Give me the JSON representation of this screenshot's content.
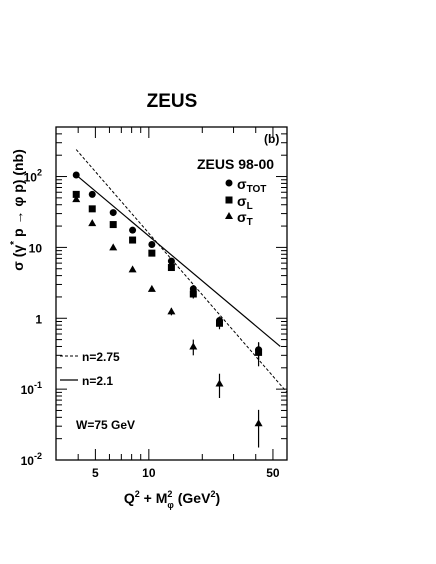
{
  "chart_data": {
    "type": "scatter",
    "title": "ZEUS",
    "panel_label": "(b)",
    "legend_title": "ZEUS 98-00",
    "xlabel": {
      "main": "Q",
      "sup1": "2",
      "mid": " + M",
      "sup2": "2",
      "sub": "φ",
      "unit": " (GeV",
      "unit_sup": "2",
      "close": ")"
    },
    "ylabel": {
      "pre": "σ (γ",
      "sup": "*",
      "post": " p → φ p) (nb)"
    },
    "x_scale": "log",
    "y_scale": "log",
    "xlim": [
      3,
      60
    ],
    "ylim": [
      0.01,
      500
    ],
    "x_ticks": [
      {
        "v": 5,
        "label": "5"
      },
      {
        "v": 10,
        "label": "10"
      },
      {
        "v": 50,
        "label": "50"
      }
    ],
    "y_ticks": [
      {
        "v": 0.01,
        "base": "10",
        "exp": "-2"
      },
      {
        "v": 0.1,
        "base": "10",
        "exp": "-1"
      },
      {
        "v": 1,
        "base": "1",
        "exp": ""
      },
      {
        "v": 10,
        "base": "10",
        "exp": ""
      },
      {
        "v": 100,
        "base": "10",
        "exp": "2"
      }
    ],
    "series": [
      {
        "name": "σ",
        "sub": "TOT",
        "marker": "circle",
        "points": [
          [
            3.9,
            105,
            0
          ],
          [
            4.8,
            56,
            0
          ],
          [
            6.3,
            31,
            0
          ],
          [
            8.1,
            17.5,
            0
          ],
          [
            10.4,
            11,
            0
          ],
          [
            13.4,
            6.4,
            0
          ],
          [
            17.8,
            2.6,
            0.35
          ],
          [
            25,
            0.93,
            0.13
          ],
          [
            41.5,
            0.36,
            0.1
          ]
        ]
      },
      {
        "name": "σ",
        "sub": "L",
        "marker": "square",
        "points": [
          [
            3.9,
            56,
            0
          ],
          [
            4.8,
            35,
            0
          ],
          [
            6.3,
            21,
            0
          ],
          [
            8.1,
            12.7,
            0
          ],
          [
            10.4,
            8.3,
            0
          ],
          [
            13.4,
            5.2,
            0
          ],
          [
            17.8,
            2.2,
            0.3
          ],
          [
            25,
            0.85,
            0.15
          ],
          [
            41.5,
            0.33,
            0.12
          ]
        ]
      },
      {
        "name": "σ",
        "sub": "T",
        "marker": "triangle",
        "points": [
          [
            3.9,
            48,
            0
          ],
          [
            4.8,
            22,
            0
          ],
          [
            6.3,
            10,
            0
          ],
          [
            8.1,
            4.9,
            0
          ],
          [
            10.4,
            2.6,
            0
          ],
          [
            13.4,
            1.25,
            0.15
          ],
          [
            17.8,
            0.4,
            0.1
          ],
          [
            25,
            0.12,
            0.045
          ],
          [
            41.5,
            0.033,
            0.018
          ]
        ]
      }
    ],
    "lines": [
      {
        "name": "n=2.75",
        "style": "dashed",
        "from": [
          3.9,
          240
        ],
        "to": [
          60,
          0.09
        ]
      },
      {
        "name": "n=2.1",
        "style": "solid",
        "from": [
          3.9,
          105
        ],
        "to": [
          55,
          0.4
        ]
      }
    ],
    "annotation": "W=75 GeV"
  }
}
